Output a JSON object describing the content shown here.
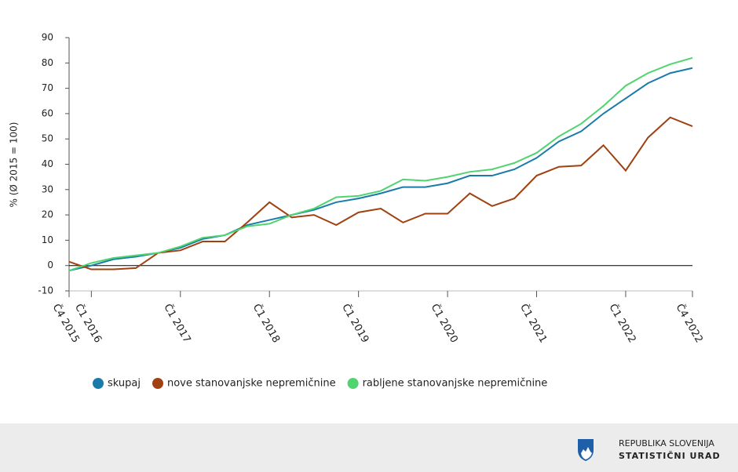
{
  "chart_data": {
    "type": "line",
    "y_label": "% (Ø 2015 = 100)",
    "categories": [
      "Č4 2015",
      "Č1 2016",
      null,
      null,
      null,
      "Č1 2017",
      null,
      null,
      null,
      "Č1 2018",
      null,
      null,
      null,
      "Č1 2019",
      null,
      null,
      null,
      "Č1 2020",
      null,
      null,
      null,
      "Č1 2021",
      null,
      null,
      null,
      "Č1 2022",
      null,
      null,
      "Č4 2022"
    ],
    "series": [
      {
        "name": "skupaj",
        "color": "#1a7bab",
        "values": [
          -2,
          0,
          2.5,
          3.5,
          5,
          7,
          10.5,
          12,
          16,
          18,
          20,
          22,
          25,
          26.5,
          28.5,
          31,
          31,
          32.5,
          35.5,
          35.5,
          38,
          42.5,
          49,
          53,
          60,
          66,
          72,
          76,
          78
        ]
      },
      {
        "name": "nove stanovanjske nepremičnine",
        "color": "#a0410f",
        "values": [
          1.5,
          -1.5,
          -1.5,
          -1,
          5,
          6,
          9.5,
          9.5,
          17,
          25,
          19,
          20,
          16,
          21,
          22.5,
          17,
          20.5,
          20.5,
          28.5,
          23.5,
          26.5,
          35.5,
          39,
          39.5,
          47.5,
          37.5,
          50.5,
          58.5,
          55
        ]
      },
      {
        "name": "rabljene stanovanjske nepremičnine",
        "color": "#4fd46f",
        "values": [
          -2,
          1,
          3,
          4,
          5,
          7.5,
          11,
          12,
          15.5,
          16.5,
          20,
          22.5,
          27,
          27.5,
          29.5,
          34,
          33.5,
          35,
          37,
          38,
          40.5,
          44.5,
          51,
          56,
          63,
          71,
          76,
          79.5,
          82
        ]
      }
    ],
    "ylim": [
      -10,
      90
    ],
    "yticks": [
      -10,
      0,
      10,
      20,
      30,
      40,
      50,
      60,
      70,
      80,
      90
    ],
    "legend": "bottom"
  },
  "footer": {
    "line1": "REPUBLIKA SLOVENIJA",
    "line2": "STATISTIČNI URAD"
  }
}
